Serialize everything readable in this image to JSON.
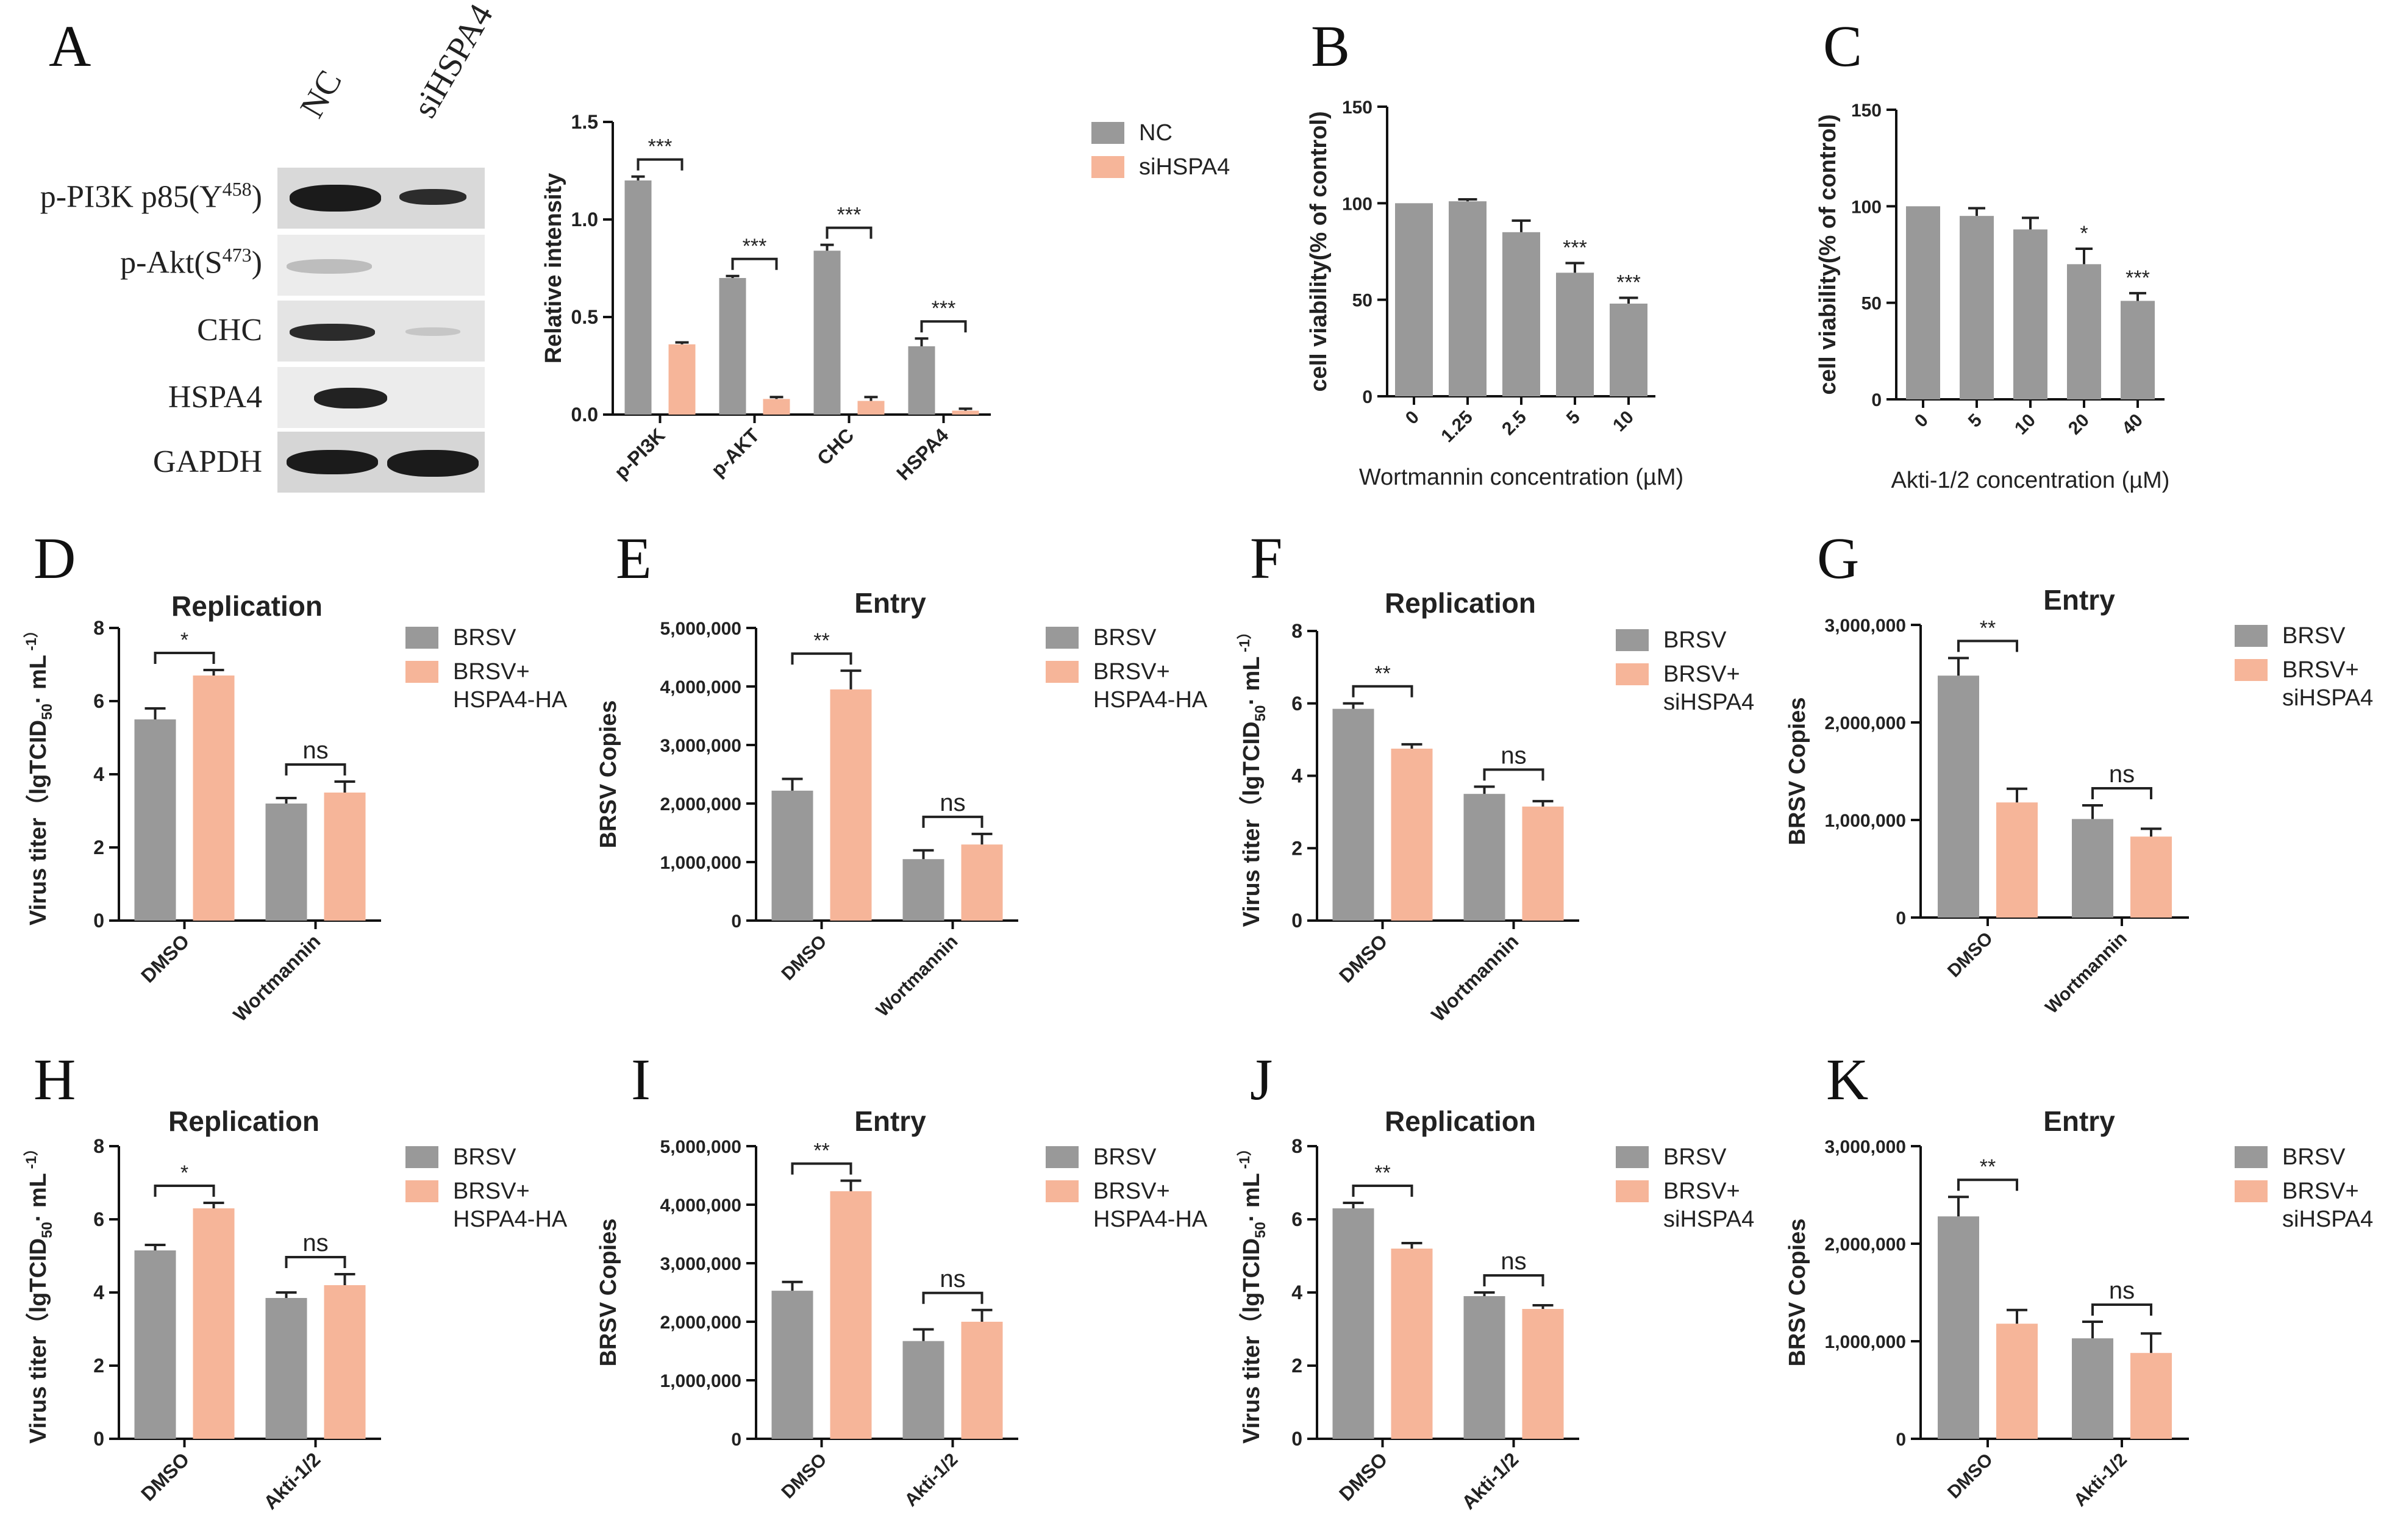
{
  "panel_labels": [
    "A",
    "B",
    "C",
    "D",
    "E",
    "F",
    "G",
    "H",
    "I",
    "J",
    "K"
  ],
  "blot": {
    "lanes": [
      "NC",
      "siHSPA4"
    ],
    "rows": [
      "p-PI3K p85(Y",
      "p-Akt(S",
      "CHC",
      "HSPA4",
      "GAPDH"
    ],
    "superscripts": [
      "458",
      "473",
      "",
      "",
      ""
    ],
    "close_paren": ")"
  },
  "colors": {
    "gray": "#999999",
    "salmon": "#F6B599",
    "axis": "#111111"
  },
  "chart_data": [
    {
      "id": "A",
      "type": "bar",
      "title": "",
      "categories": [
        "p-PI3K",
        "p-AKT",
        "CHC",
        "HSPA4"
      ],
      "series": [
        {
          "name": "NC",
          "values": [
            1.2,
            0.7,
            0.84,
            0.35
          ],
          "errors": [
            0.02,
            0.01,
            0.03,
            0.04
          ]
        },
        {
          "name": "siHSPA4",
          "values": [
            0.36,
            0.08,
            0.07,
            0.02
          ],
          "errors": [
            0.01,
            0.01,
            0.02,
            0.01
          ]
        }
      ],
      "sig": [
        "***",
        "***",
        "***",
        "***"
      ],
      "ylabel": "Relative intensity",
      "xlabel": "",
      "ylim": [
        0,
        1.5
      ],
      "yticks": [
        "0.0",
        "0.5",
        "1.0",
        "1.5"
      ],
      "legend": "top-right"
    },
    {
      "id": "B",
      "type": "bar",
      "title": "",
      "categories": [
        "0",
        "1.25",
        "2.5",
        "5",
        "10"
      ],
      "series": [
        {
          "name": "",
          "values": [
            100,
            101,
            85,
            64,
            48
          ],
          "errors": [
            0,
            1,
            6,
            5,
            3
          ]
        }
      ],
      "sig": [
        "",
        "",
        "",
        "***",
        "***"
      ],
      "ylabel": "cell viability(% of control)",
      "xlabel": "Wortmannin concentration (µM)",
      "ylim": [
        0,
        150
      ],
      "yticks": [
        "0",
        "50",
        "100",
        "150"
      ]
    },
    {
      "id": "C",
      "type": "bar",
      "title": "",
      "categories": [
        "0",
        "5",
        "10",
        "20",
        "40"
      ],
      "series": [
        {
          "name": "",
          "values": [
            100,
            95,
            88,
            70,
            51
          ],
          "errors": [
            0,
            4,
            6,
            8,
            4
          ]
        }
      ],
      "sig": [
        "",
        "",
        "",
        "*",
        "***"
      ],
      "ylabel": "cell viability(% of control)",
      "xlabel": "Akti-1/2 concentration (µM)",
      "ylim": [
        0,
        150
      ],
      "yticks": [
        "0",
        "50",
        "100",
        "150"
      ]
    },
    {
      "id": "D",
      "type": "bar",
      "title": "Replication",
      "categories": [
        "DMSO",
        "Wortmannin"
      ],
      "series": [
        {
          "name": "BRSV",
          "values": [
            5.5,
            3.2
          ],
          "errors": [
            0.3,
            0.15
          ]
        },
        {
          "name": "BRSV+\nHSPA4-HA",
          "values": [
            6.7,
            3.5
          ],
          "errors": [
            0.15,
            0.3
          ]
        }
      ],
      "sig": [
        "*",
        "ns"
      ],
      "ylabel": "Virus titer（lgTCID50· mL",
      "xlabel": "",
      "ylim": [
        0,
        8
      ],
      "yticks": [
        "0",
        "2",
        "4",
        "6",
        "8"
      ]
    },
    {
      "id": "E",
      "type": "bar",
      "title": "Entry",
      "categories": [
        "DMSO",
        "Wortmannin"
      ],
      "series": [
        {
          "name": "BRSV",
          "values": [
            2220000,
            1050000
          ],
          "errors": [
            200000,
            150000
          ]
        },
        {
          "name": "BRSV+\nHSPA4-HA",
          "values": [
            3950000,
            1300000
          ],
          "errors": [
            320000,
            180000
          ]
        }
      ],
      "sig": [
        "**",
        "ns"
      ],
      "ylabel": "BRSV Copies",
      "xlabel": "",
      "ylim": [
        0,
        5000000
      ],
      "yticks": [
        "0",
        "1,000,000",
        "2,000,000",
        "3,000,000",
        "4,000,000",
        "5,000,000"
      ]
    },
    {
      "id": "F",
      "type": "bar",
      "title": "Replication",
      "categories": [
        "DMSO",
        "Wortmannin"
      ],
      "series": [
        {
          "name": "BRSV",
          "values": [
            5.85,
            3.5
          ],
          "errors": [
            0.15,
            0.2
          ]
        },
        {
          "name": "BRSV+\nsiHSPA4",
          "values": [
            4.75,
            3.15
          ],
          "errors": [
            0.12,
            0.15
          ]
        }
      ],
      "sig": [
        "**",
        "ns"
      ],
      "ylabel": "Virus titer（lgTCID50· mL",
      "xlabel": "",
      "ylim": [
        0,
        8
      ],
      "yticks": [
        "0",
        "2",
        "4",
        "6",
        "8"
      ]
    },
    {
      "id": "G",
      "type": "bar",
      "title": "Entry",
      "categories": [
        "DMSO",
        "Wortmannin"
      ],
      "series": [
        {
          "name": "BRSV",
          "values": [
            2480000,
            1010000
          ],
          "errors": [
            180000,
            140000
          ]
        },
        {
          "name": "BRSV+\nsiHSPA4",
          "values": [
            1180000,
            830000
          ],
          "errors": [
            140000,
            80000
          ]
        }
      ],
      "sig": [
        "**",
        "ns"
      ],
      "ylabel": "BRSV Copies",
      "xlabel": "",
      "ylim": [
        0,
        3000000
      ],
      "yticks": [
        "0",
        "1,000,000",
        "2,000,000",
        "3,000,000"
      ]
    },
    {
      "id": "H",
      "type": "bar",
      "title": "Replication",
      "categories": [
        "DMSO",
        "Akti-1/2"
      ],
      "series": [
        {
          "name": "BRSV",
          "values": [
            5.15,
            3.85
          ],
          "errors": [
            0.15,
            0.15
          ]
        },
        {
          "name": "BRSV+\nHSPA4-HA",
          "values": [
            6.3,
            4.2
          ],
          "errors": [
            0.15,
            0.3
          ]
        }
      ],
      "sig": [
        "*",
        "ns"
      ],
      "ylabel": "Virus titer（lgTCID50· mL",
      "xlabel": "",
      "ylim": [
        0,
        8
      ],
      "yticks": [
        "0",
        "2",
        "4",
        "6",
        "8"
      ]
    },
    {
      "id": "I",
      "type": "bar",
      "title": "Entry",
      "categories": [
        "DMSO",
        "Akti-1/2"
      ],
      "series": [
        {
          "name": "BRSV",
          "values": [
            2530000,
            1670000
          ],
          "errors": [
            150000,
            200000
          ]
        },
        {
          "name": "BRSV+\nHSPA4-HA",
          "values": [
            4230000,
            2000000
          ],
          "errors": [
            180000,
            200000
          ]
        }
      ],
      "sig": [
        "**",
        "ns"
      ],
      "ylabel": "BRSV Copies",
      "xlabel": "",
      "ylim": [
        0,
        5000000
      ],
      "yticks": [
        "0",
        "1,000,000",
        "2,000,000",
        "3,000,000",
        "4,000,000",
        "5,000,000"
      ]
    },
    {
      "id": "J",
      "type": "bar",
      "title": "Replication",
      "categories": [
        "DMSO",
        "Akti-1/2"
      ],
      "series": [
        {
          "name": "BRSV",
          "values": [
            6.3,
            3.9
          ],
          "errors": [
            0.15,
            0.1
          ]
        },
        {
          "name": "BRSV+\nsiHSPA4",
          "values": [
            5.2,
            3.55
          ],
          "errors": [
            0.15,
            0.1
          ]
        }
      ],
      "sig": [
        "**",
        "ns"
      ],
      "ylabel": "Virus titer（lgTCID50· mL",
      "xlabel": "",
      "ylim": [
        0,
        8
      ],
      "yticks": [
        "0",
        "2",
        "4",
        "6",
        "8"
      ]
    },
    {
      "id": "K",
      "type": "bar",
      "title": "Entry",
      "categories": [
        "DMSO",
        "Akti-1/2"
      ],
      "series": [
        {
          "name": "BRSV",
          "values": [
            2280000,
            1030000
          ],
          "errors": [
            200000,
            170000
          ]
        },
        {
          "name": "BRSV+\nsiHSPA4",
          "values": [
            1180000,
            880000
          ],
          "errors": [
            140000,
            200000
          ]
        }
      ],
      "sig": [
        "**",
        "ns"
      ],
      "ylabel": "BRSV Copies",
      "xlabel": "",
      "ylim": [
        0,
        3000000
      ],
      "yticks": [
        "0",
        "1,000,000",
        "2,000,000",
        "3,000,000"
      ]
    }
  ]
}
